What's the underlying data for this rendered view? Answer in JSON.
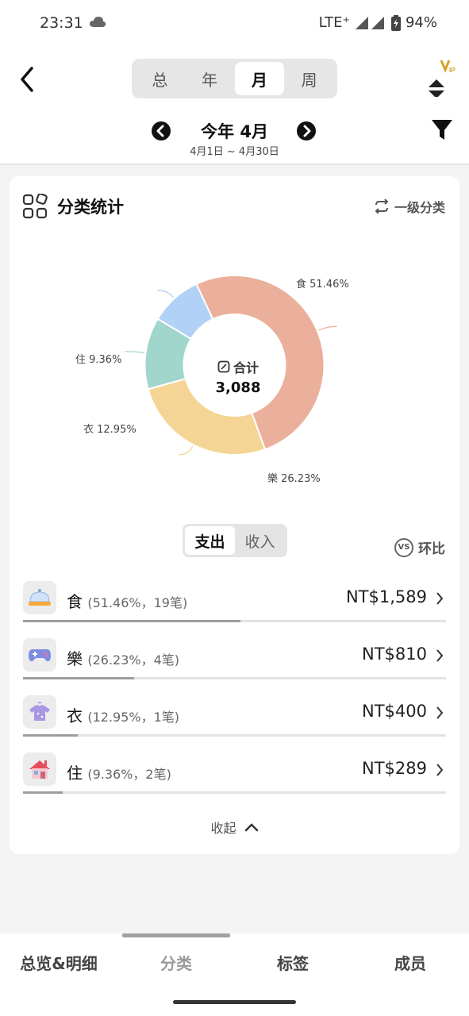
{
  "status": {
    "time": "23:31",
    "network": "LTE⁺",
    "battery": "94%"
  },
  "header": {
    "tabs": [
      {
        "label": "总",
        "active": false
      },
      {
        "label": "年",
        "active": false
      },
      {
        "label": "月",
        "active": true
      },
      {
        "label": "周",
        "active": false
      }
    ],
    "period_title": "今年 4月",
    "period_range": "4月1日 ~ 4月30日",
    "vip_badge": "VIP"
  },
  "card": {
    "title": "分类统计",
    "level_toggle": "一级分类",
    "total_label": "合计",
    "total_value": "3,088"
  },
  "chart_data": {
    "type": "pie",
    "categories": [
      "食",
      "樂",
      "衣",
      "住"
    ],
    "values": [
      51.46,
      26.23,
      12.95,
      9.36
    ],
    "labels": [
      "食 51.46%",
      "樂 26.23%",
      "衣 12.95%",
      "住 9.36%"
    ],
    "colors": [
      "#ebb09b",
      "#f5d596",
      "#a1d6cd",
      "#b1d2f6"
    ]
  },
  "io_toggle": {
    "expense": "支出",
    "income": "收入",
    "active": "expense"
  },
  "compare_toggle": {
    "badge": "VS",
    "label": "环比"
  },
  "categories": [
    {
      "name": "食",
      "meta": "(51.46%，19笔)",
      "amount": "NT$1,589",
      "share": 0.5146,
      "icon": "food-cover-icon"
    },
    {
      "name": "樂",
      "meta": "(26.23%，4笔)",
      "amount": "NT$810",
      "share": 0.2623,
      "icon": "gamepad-icon"
    },
    {
      "name": "衣",
      "meta": "(12.95%，1笔)",
      "amount": "NT$400",
      "share": 0.1295,
      "icon": "shirt-icon"
    },
    {
      "name": "住",
      "meta": "(9.36%，2笔)",
      "amount": "NT$289",
      "share": 0.0936,
      "icon": "house-icon"
    }
  ],
  "collapse_label": "收起",
  "bottom_nav": [
    {
      "label": "总览&明细",
      "active": false
    },
    {
      "label": "分类",
      "active": true
    },
    {
      "label": "标签",
      "active": false
    },
    {
      "label": "成员",
      "active": false
    }
  ]
}
